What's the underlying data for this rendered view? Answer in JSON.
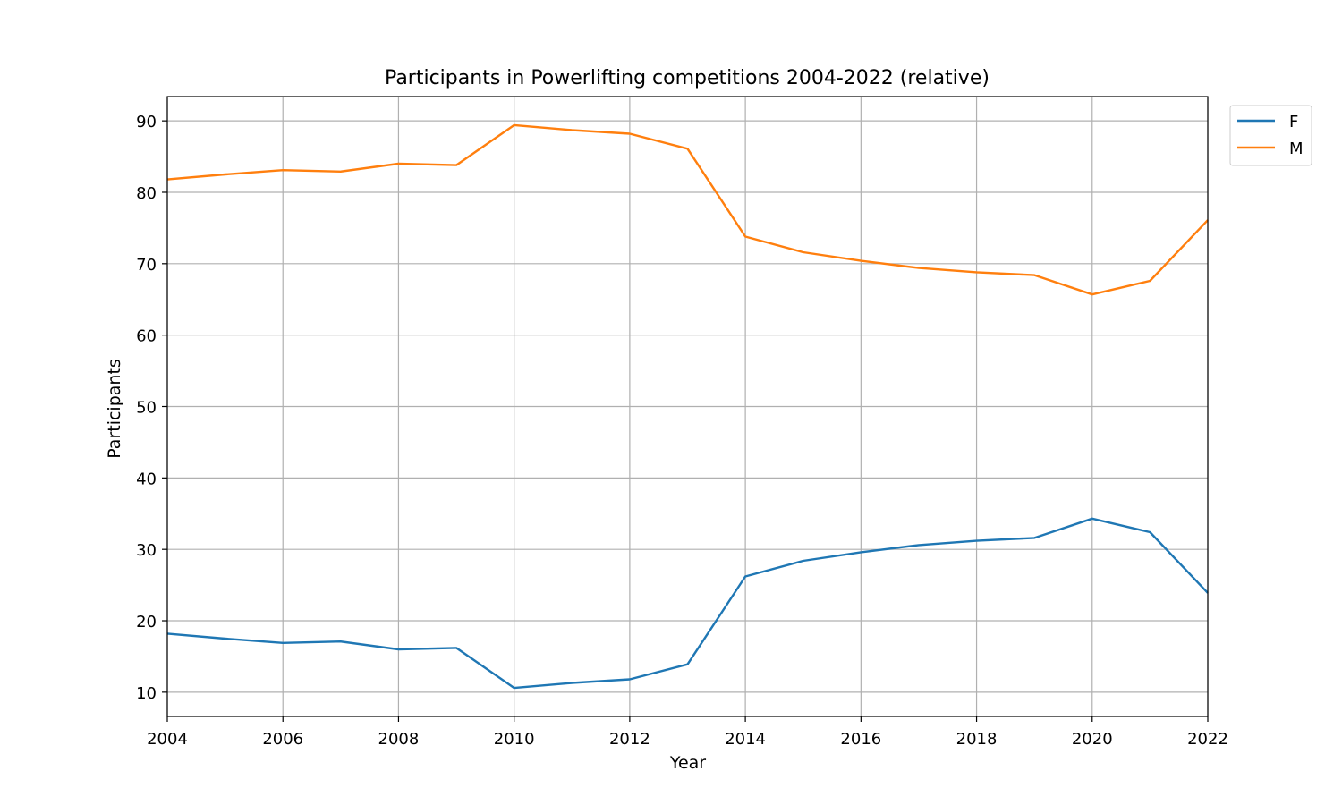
{
  "chart_data": {
    "type": "line",
    "title": "Participants in Powerlifting competitions 2004-2022 (relative)",
    "xlabel": "Year",
    "ylabel": "Participants",
    "xlim": [
      2004,
      2022
    ],
    "ylim": [
      6.6,
      93.4
    ],
    "x_ticks": [
      2004,
      2006,
      2008,
      2010,
      2012,
      2014,
      2016,
      2018,
      2020,
      2022
    ],
    "y_ticks": [
      10,
      20,
      30,
      40,
      50,
      60,
      70,
      80,
      90
    ],
    "grid": true,
    "legend_position": "upper-right-outside",
    "x": [
      2004,
      2005,
      2006,
      2007,
      2008,
      2009,
      2010,
      2011,
      2012,
      2013,
      2014,
      2015,
      2016,
      2017,
      2018,
      2019,
      2020,
      2021,
      2022
    ],
    "series": [
      {
        "name": "F",
        "color": "#1f77b4",
        "values": [
          18.2,
          17.5,
          16.9,
          17.1,
          16.0,
          16.2,
          10.6,
          11.3,
          11.8,
          13.9,
          26.2,
          28.4,
          29.6,
          30.6,
          31.2,
          31.6,
          34.3,
          32.4,
          23.9
        ]
      },
      {
        "name": "M",
        "color": "#ff7f0e",
        "values": [
          81.8,
          82.5,
          83.1,
          82.9,
          84.0,
          83.8,
          89.4,
          88.7,
          88.2,
          86.1,
          73.8,
          71.6,
          70.4,
          69.4,
          68.8,
          68.4,
          65.7,
          67.6,
          76.1
        ]
      }
    ]
  }
}
